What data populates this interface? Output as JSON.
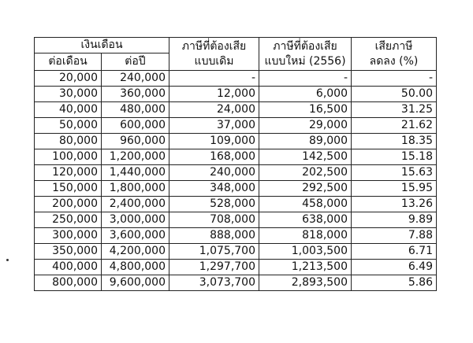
{
  "table": {
    "header": {
      "salary": "เงินเดือน",
      "per_month": "ต่อเดือน",
      "per_year": "ต่อปี",
      "old_tax": [
        "ภาษีที่ต้องเสีย",
        "แบบเดิม"
      ],
      "new_tax": [
        "ภาษีที่ต้องเสีย",
        "แบบใหม่ (2556)"
      ],
      "reduction": [
        "เสียภาษี",
        "ลดลง (%)"
      ]
    },
    "rows": [
      [
        "20,000",
        "240,000",
        "-",
        "-",
        "-"
      ],
      [
        "30,000",
        "360,000",
        "12,000",
        "6,000",
        "50.00"
      ],
      [
        "40,000",
        "480,000",
        "24,000",
        "16,500",
        "31.25"
      ],
      [
        "50,000",
        "600,000",
        "37,000",
        "29,000",
        "21.62"
      ],
      [
        "80,000",
        "960,000",
        "109,000",
        "89,000",
        "18.35"
      ],
      [
        "100,000",
        "1,200,000",
        "168,000",
        "142,500",
        "15.18"
      ],
      [
        "120,000",
        "1,440,000",
        "240,000",
        "202,500",
        "15.63"
      ],
      [
        "150,000",
        "1,800,000",
        "348,000",
        "292,500",
        "15.95"
      ],
      [
        "200,000",
        "2,400,000",
        "528,000",
        "458,000",
        "13.26"
      ],
      [
        "250,000",
        "3,000,000",
        "708,000",
        "638,000",
        "9.89"
      ],
      [
        "300,000",
        "3,600,000",
        "888,000",
        "818,000",
        "7.88"
      ],
      [
        "350,000",
        "4,200,000",
        "1,075,700",
        "1,003,500",
        "6.71"
      ],
      [
        "400,000",
        "4,800,000",
        "1,297,700",
        "1,213,500",
        "6.49"
      ],
      [
        "800,000",
        "9,600,000",
        "3,073,700",
        "2,893,500",
        "5.86"
      ]
    ]
  }
}
